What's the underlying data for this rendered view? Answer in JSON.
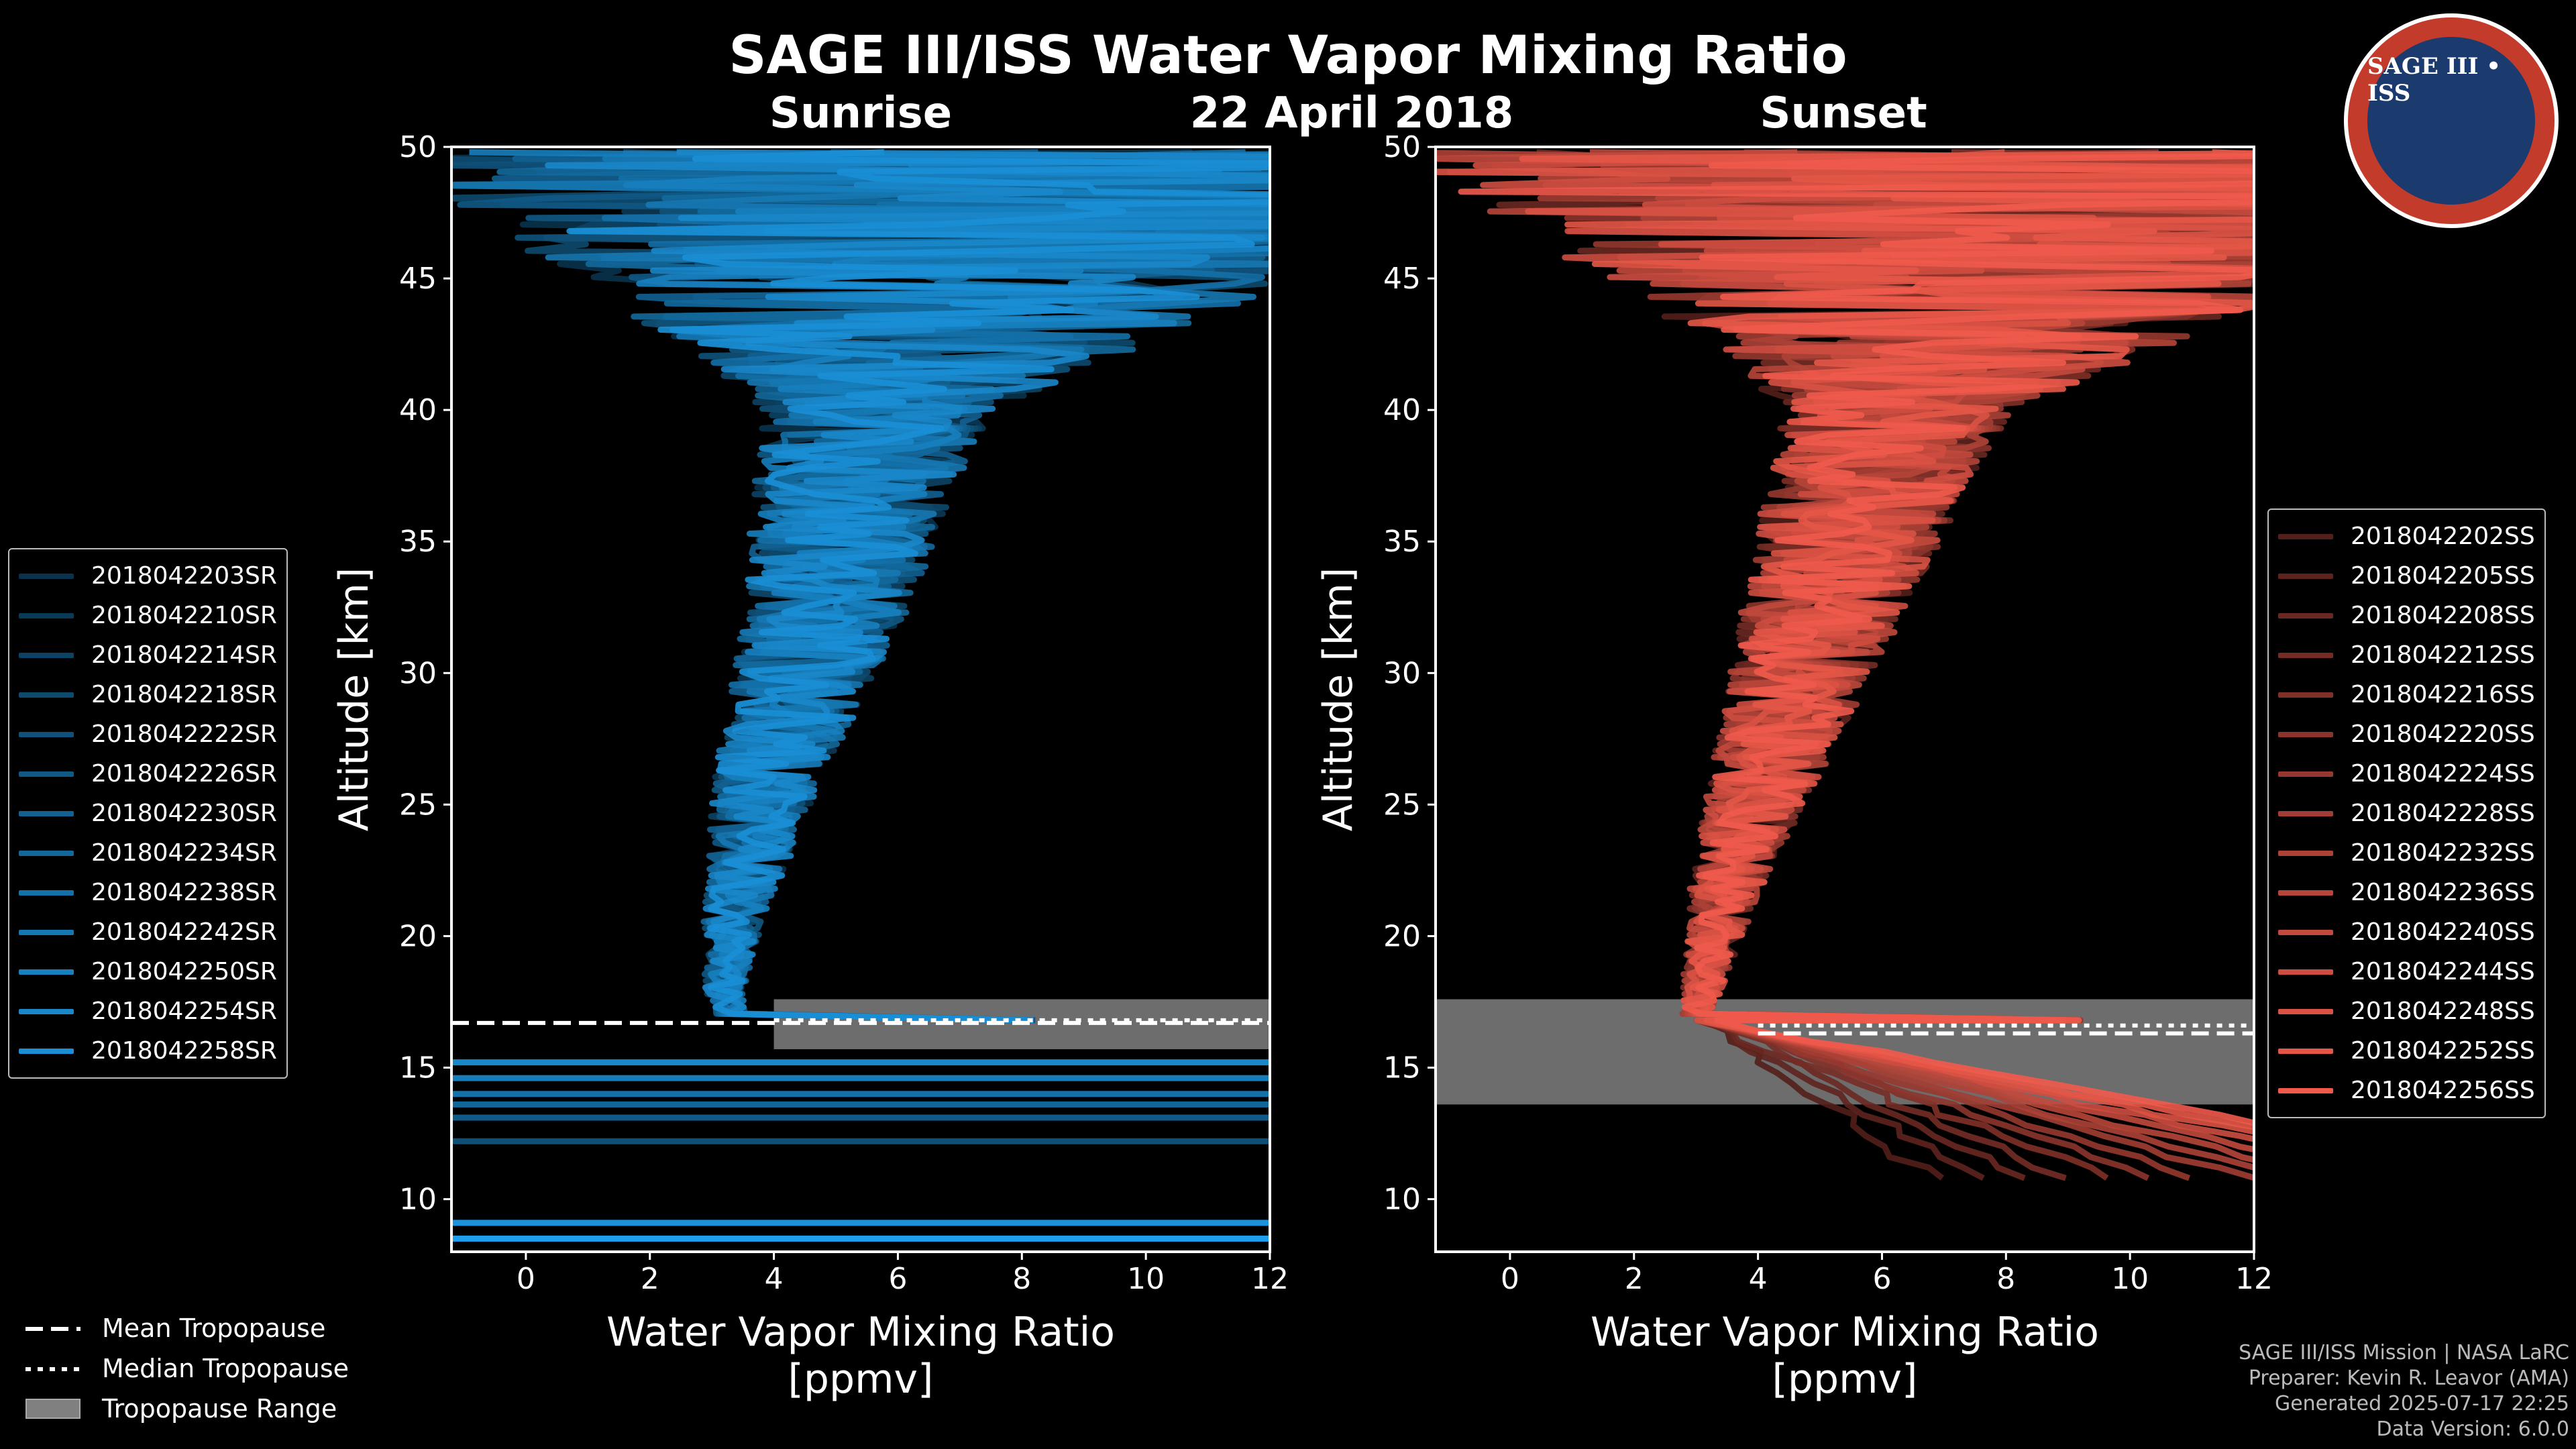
{
  "title": "SAGE III/ISS Water Vapor Mixing Ratio",
  "date_label": "22 April 2018",
  "logo_text": "SAGE III • ISS",
  "colors": {
    "background": "#000000",
    "sunrise": "#1a8fd6",
    "sunset": "#ef5a4b",
    "tropopause_range": "#808080"
  },
  "chart_data": [
    {
      "type": "line",
      "panel": "Sunrise",
      "xlabel": "Water Vapor Mixing Ratio\n[ppmv]",
      "ylabel": "Altitude [km]",
      "xlim": [
        -1.2,
        12
      ],
      "ylim": [
        8,
        50
      ],
      "xticks": [
        0,
        2,
        4,
        6,
        8,
        10,
        12
      ],
      "yticks": [
        10,
        15,
        20,
        25,
        30,
        35,
        40,
        45,
        50
      ],
      "legend_position": "left",
      "series_names": [
        "2018042203SR",
        "2018042210SR",
        "2018042214SR",
        "2018042218SR",
        "2018042222SR",
        "2018042226SR",
        "2018042230SR",
        "2018042234SR",
        "2018042238SR",
        "2018042242SR",
        "2018042250SR",
        "2018042254SR",
        "2018042258SR"
      ],
      "mean_profile": {
        "altitude": [
          17,
          18,
          20,
          22,
          24,
          26,
          28,
          30,
          32,
          34,
          36,
          38,
          40,
          42,
          44,
          46,
          48,
          50
        ],
        "value": [
          3.3,
          3.2,
          3.3,
          3.5,
          3.7,
          3.9,
          4.2,
          4.5,
          4.8,
          5.0,
          5.2,
          5.4,
          5.7,
          6.1,
          6.5,
          7.0,
          7.5,
          8.0
        ]
      },
      "tropopause": {
        "mean": 16.7,
        "median": 16.8,
        "range": [
          15.7,
          17.6
        ]
      },
      "surface_layers_km": [
        12.2,
        13.1,
        13.6,
        14.0,
        14.6,
        15.2,
        9.1,
        8.5
      ]
    },
    {
      "type": "line",
      "panel": "Sunset",
      "xlabel": "Water Vapor Mixing Ratio\n[ppmv]",
      "ylabel": "Altitude [km]",
      "xlim": [
        -1.2,
        12
      ],
      "ylim": [
        8,
        50
      ],
      "xticks": [
        0,
        2,
        4,
        6,
        8,
        10,
        12
      ],
      "yticks": [
        10,
        15,
        20,
        25,
        30,
        35,
        40,
        45,
        50
      ],
      "legend_position": "right",
      "series_names": [
        "2018042202SS",
        "2018042205SS",
        "2018042208SS",
        "2018042212SS",
        "2018042216SS",
        "2018042220SS",
        "2018042224SS",
        "2018042228SS",
        "2018042232SS",
        "2018042236SS",
        "2018042240SS",
        "2018042244SS",
        "2018042248SS",
        "2018042252SS",
        "2018042256SS"
      ],
      "mean_profile": {
        "altitude": [
          17,
          18,
          20,
          22,
          24,
          26,
          28,
          30,
          32,
          34,
          36,
          38,
          40,
          42,
          44,
          46,
          48,
          50
        ],
        "value": [
          3.0,
          3.1,
          3.3,
          3.5,
          3.8,
          4.1,
          4.4,
          4.7,
          5.0,
          5.3,
          5.6,
          5.9,
          6.3,
          6.8,
          7.3,
          7.8,
          8.4,
          9.0
        ]
      },
      "tropopause": {
        "mean": 16.3,
        "median": 16.6,
        "range": [
          13.6,
          17.6
        ]
      }
    }
  ],
  "footer_legend": {
    "mean": "Mean Tropopause",
    "median": "Median Tropopause",
    "range": "Tropopause Range"
  },
  "credits": [
    "SAGE III/ISS Mission | NASA LaRC",
    "Preparer: Kevin R. Leavor (AMA)",
    "Generated 2025-07-17 22:25",
    "Data Version: 6.0.0"
  ]
}
